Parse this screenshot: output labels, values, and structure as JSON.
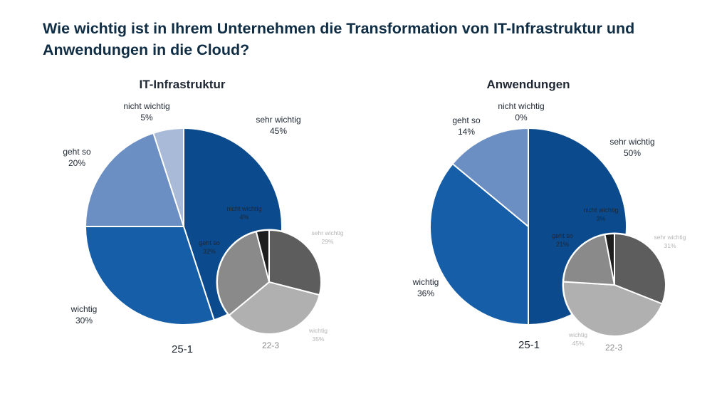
{
  "title": "Wie wichtig ist in Ihrem Unternehmen die Transformation von IT-Infrastruktur und Anwendungen in die Cloud?",
  "colors": {
    "sehr_wichtig": "#0b4a8c",
    "wichtig": "#165fa8",
    "geht_so": "#6b8fc3",
    "nicht_wichtig": "#a9bad8",
    "inset_sehr_wichtig": "#5d5d5d",
    "inset_wichtig": "#b0b0b0",
    "inset_geht_so": "#8a8a8a",
    "inset_nicht_wichtig": "#1e1e1e",
    "inset_label": "#b5b5b5",
    "text": "#1f2733"
  },
  "chart_data": [
    {
      "type": "pie",
      "title": "IT-Infrastruktur",
      "period_label": "25-1",
      "categories": [
        "sehr wichtig",
        "wichtig",
        "geht so",
        "nicht wichtig"
      ],
      "values": [
        45,
        30,
        20,
        5
      ],
      "inset": {
        "period_label": "22-3",
        "categories": [
          "sehr wichtig",
          "wichtig",
          "geht so",
          "nicht wichtig"
        ],
        "values": [
          29,
          35,
          32,
          4
        ]
      }
    },
    {
      "type": "pie",
      "title": "Anwendungen",
      "period_label": "25-1",
      "categories": [
        "sehr wichtig",
        "wichtig",
        "geht so",
        "nicht wichtig"
      ],
      "values": [
        50,
        36,
        14,
        0
      ],
      "inset": {
        "period_label": "22-3",
        "categories": [
          "sehr wichtig",
          "wichtig",
          "geht so",
          "nicht wichtig"
        ],
        "values": [
          31,
          45,
          21,
          3
        ]
      }
    }
  ]
}
